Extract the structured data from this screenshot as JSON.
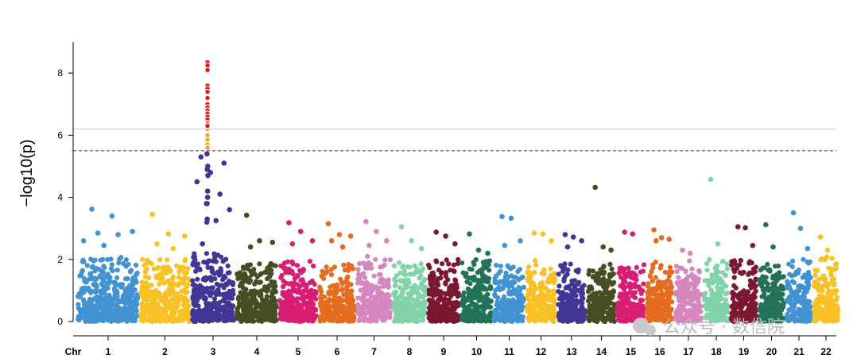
{
  "chart_data": {
    "type": "scatter",
    "subtype": "manhattan",
    "xlabel_prefix": "Chr",
    "ylabel": "−log10(p)",
    "ylim": [
      0,
      9
    ],
    "yticks": [
      0,
      2,
      4,
      6,
      8
    ],
    "threshold_lines": [
      {
        "name": "genome-wide significance",
        "value": 6.2,
        "style": "solid",
        "color": "#cccccc"
      },
      {
        "name": "suggestive",
        "value": 5.5,
        "style": "dashed",
        "color": "#333333"
      }
    ],
    "chromosomes": [
      {
        "label": "1",
        "color": "#4393d3",
        "max_y": 2.1,
        "outliers": [
          3.62,
          3.4,
          2.9,
          2.85,
          2.8,
          2.6,
          2.45
        ]
      },
      {
        "label": "2",
        "color": "#f8c125",
        "max_y": 2.0,
        "outliers": [
          3.45,
          2.82,
          2.75,
          2.5,
          2.35
        ]
      },
      {
        "label": "3",
        "color": "#423695",
        "max_y": 2.2,
        "outliers": [
          2.5,
          3.25,
          3.6,
          3.8,
          4.1,
          4.5,
          4.8,
          5.1,
          5.3
        ]
      },
      {
        "label": "4",
        "color": "#474d22",
        "max_y": 1.9,
        "outliers": [
          3.42,
          2.6,
          2.55,
          2.4
        ]
      },
      {
        "label": "5",
        "color": "#d81e74",
        "max_y": 2.0,
        "outliers": [
          3.18,
          2.9,
          2.6,
          2.5
        ]
      },
      {
        "label": "6",
        "color": "#e56c1e",
        "max_y": 1.9,
        "outliers": [
          3.15,
          2.8,
          2.75,
          2.6,
          2.4
        ]
      },
      {
        "label": "7",
        "color": "#d687be",
        "max_y": 2.1,
        "outliers": [
          3.22,
          2.9,
          2.6,
          2.45
        ]
      },
      {
        "label": "8",
        "color": "#83d3aa",
        "max_y": 1.9,
        "outliers": [
          3.05,
          2.6,
          2.35
        ]
      },
      {
        "label": "9",
        "color": "#7b1730",
        "max_y": 2.0,
        "outliers": [
          2.88,
          2.75,
          2.5
        ]
      },
      {
        "label": "10",
        "color": "#227258",
        "max_y": 2.0,
        "outliers": [
          2.82,
          2.3,
          2.2
        ]
      },
      {
        "label": "11",
        "color": "#4393d3",
        "max_y": 1.9,
        "outliers": [
          3.38,
          3.33,
          2.6,
          2.45
        ]
      },
      {
        "label": "12",
        "color": "#f8c125",
        "max_y": 2.1,
        "outliers": [
          2.85,
          2.82,
          2.6
        ]
      },
      {
        "label": "13",
        "color": "#423695",
        "max_y": 1.9,
        "outliers": [
          2.8,
          2.72,
          2.6,
          2.4
        ]
      },
      {
        "label": "14",
        "color": "#474d22",
        "max_y": 1.9,
        "outliers": [
          4.32,
          2.4,
          2.3
        ]
      },
      {
        "label": "15",
        "color": "#d81e74",
        "max_y": 1.9,
        "outliers": [
          2.88,
          2.82
        ]
      },
      {
        "label": "16",
        "color": "#e56c1e",
        "max_y": 2.0,
        "outliers": [
          2.95,
          2.7,
          2.65,
          2.6
        ]
      },
      {
        "label": "17",
        "color": "#d687be",
        "max_y": 2.0,
        "outliers": [
          2.3,
          2.2
        ]
      },
      {
        "label": "18",
        "color": "#83d3aa",
        "max_y": 2.0,
        "outliers": [
          4.58,
          2.5
        ]
      },
      {
        "label": "19",
        "color": "#7b1730",
        "max_y": 2.0,
        "outliers": [
          3.05,
          3.02,
          2.45
        ]
      },
      {
        "label": "20",
        "color": "#227258",
        "max_y": 1.9,
        "outliers": [
          3.12,
          2.4
        ]
      },
      {
        "label": "21",
        "color": "#4393d3",
        "max_y": 2.0,
        "outliers": [
          3.5,
          3.0,
          2.35
        ]
      },
      {
        "label": "22",
        "color": "#f8c125",
        "max_y": 2.1,
        "outliers": [
          2.72,
          2.3
        ]
      }
    ],
    "significant_hits": {
      "chromosome": "3",
      "red_points": [
        8.35,
        8.25,
        8.1,
        7.6,
        7.5,
        7.4,
        7.2,
        7.0,
        6.9,
        6.8,
        6.7,
        6.6,
        6.5,
        6.4,
        6.35,
        6.3
      ],
      "red_color": "#e8141c",
      "orange_points": [
        6.2,
        6.0,
        5.85,
        5.7,
        5.6
      ],
      "orange_color": "#f0a82a"
    }
  },
  "watermark": "公众号 · 数信院"
}
